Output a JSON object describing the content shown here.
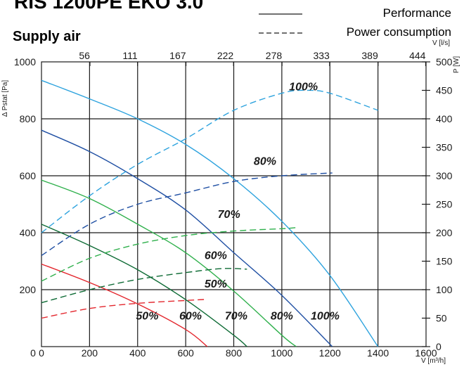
{
  "header": {
    "title": "RIS 1200PE EKO 3.0",
    "subtitle": "Supply air",
    "legend": [
      {
        "style": "solid",
        "label": "Performance"
      },
      {
        "style": "dashed",
        "label": "Power consumption"
      }
    ]
  },
  "chart_data": {
    "type": "line",
    "x_bottom": {
      "unit_label": "V [m³/h]",
      "range": [
        0,
        1600
      ],
      "ticks": [
        "0",
        "200",
        "400",
        "600",
        "800",
        "1000",
        "1200",
        "1400",
        "1600"
      ]
    },
    "x_top": {
      "unit_label": "V [l/s]",
      "ticks": [
        "56",
        "111",
        "167",
        "222",
        "278",
        "333",
        "389",
        "444"
      ]
    },
    "y_left": {
      "unit_label": "Δ Pstat [Pa]",
      "range": [
        0,
        1000
      ],
      "ticks": [
        "200",
        "400",
        "600",
        "800",
        "1000"
      ]
    },
    "y_right": {
      "unit_label": "P [W]",
      "range": [
        0,
        500
      ],
      "ticks": [
        "0",
        "50",
        "100",
        "150",
        "200",
        "250",
        "300",
        "350",
        "400",
        "450",
        "500"
      ]
    },
    "grid": true,
    "colors": {
      "100%": "#2ea3de",
      "80%": "#1f4fa3",
      "70%": "#2fb04c",
      "60%": "#0e6b35",
      "50%": "#e3262d"
    },
    "performance_series": [
      {
        "name": "100%",
        "color": "#2ea3de",
        "x": [
          0,
          200,
          400,
          600,
          800,
          1000,
          1200,
          1400
        ],
        "y": [
          935,
          870,
          800,
          710,
          590,
          440,
          250,
          0
        ]
      },
      {
        "name": "80%",
        "color": "#1f4fa3",
        "x": [
          0,
          200,
          400,
          600,
          800,
          1000,
          1210
        ],
        "y": [
          760,
          685,
          590,
          480,
          330,
          180,
          0
        ]
      },
      {
        "name": "70%",
        "color": "#2fb04c",
        "x": [
          0,
          200,
          400,
          600,
          800,
          1000,
          1060
        ],
        "y": [
          585,
          520,
          430,
          330,
          195,
          40,
          0
        ]
      },
      {
        "name": "60%",
        "color": "#0e6b35",
        "x": [
          0,
          200,
          400,
          600,
          800,
          855
        ],
        "y": [
          430,
          355,
          270,
          165,
          40,
          0
        ]
      },
      {
        "name": "50%",
        "color": "#e3262d",
        "x": [
          0,
          200,
          400,
          600,
          690
        ],
        "y": [
          290,
          225,
          150,
          60,
          0
        ]
      }
    ],
    "power_series": [
      {
        "name": "100%",
        "color": "#2ea3de",
        "x": [
          0,
          200,
          400,
          600,
          800,
          1000,
          1100,
          1200,
          1400
        ],
        "y": [
          200,
          265,
          320,
          365,
          415,
          445,
          450,
          445,
          415
        ]
      },
      {
        "name": "80%",
        "color": "#1f4fa3",
        "x": [
          0,
          200,
          400,
          600,
          800,
          1000,
          1210
        ],
        "y": [
          160,
          215,
          250,
          270,
          290,
          300,
          305
        ]
      },
      {
        "name": "70%",
        "color": "#2fb04c",
        "x": [
          0,
          200,
          400,
          600,
          800,
          1000,
          1060
        ],
        "y": [
          115,
          155,
          180,
          195,
          203,
          207,
          209
        ]
      },
      {
        "name": "60%",
        "color": "#0e6b35",
        "x": [
          0,
          200,
          400,
          600,
          750,
          855
        ],
        "y": [
          77,
          100,
          118,
          130,
          137,
          136
        ]
      },
      {
        "name": "50%",
        "color": "#e3262d",
        "x": [
          0,
          200,
          400,
          600,
          690
        ],
        "y": [
          50,
          67,
          76,
          81,
          83
        ]
      }
    ],
    "annotations": [
      {
        "text": "100%",
        "x": 1090,
        "y_right": 450
      },
      {
        "text": "80%",
        "x": 930,
        "y_right": 319
      },
      {
        "text": "70%",
        "x": 780,
        "y_right": 226
      },
      {
        "text": "60%",
        "x": 725,
        "y_right": 154
      },
      {
        "text": "50%",
        "x": 725,
        "y_right": 104
      },
      {
        "text": "50%",
        "x": 440,
        "y": 95
      },
      {
        "text": "60%",
        "x": 620,
        "y": 95
      },
      {
        "text": "70%",
        "x": 810,
        "y": 95
      },
      {
        "text": "80%",
        "x": 1000,
        "y": 95
      },
      {
        "text": "100%",
        "x": 1180,
        "y": 95
      }
    ]
  }
}
